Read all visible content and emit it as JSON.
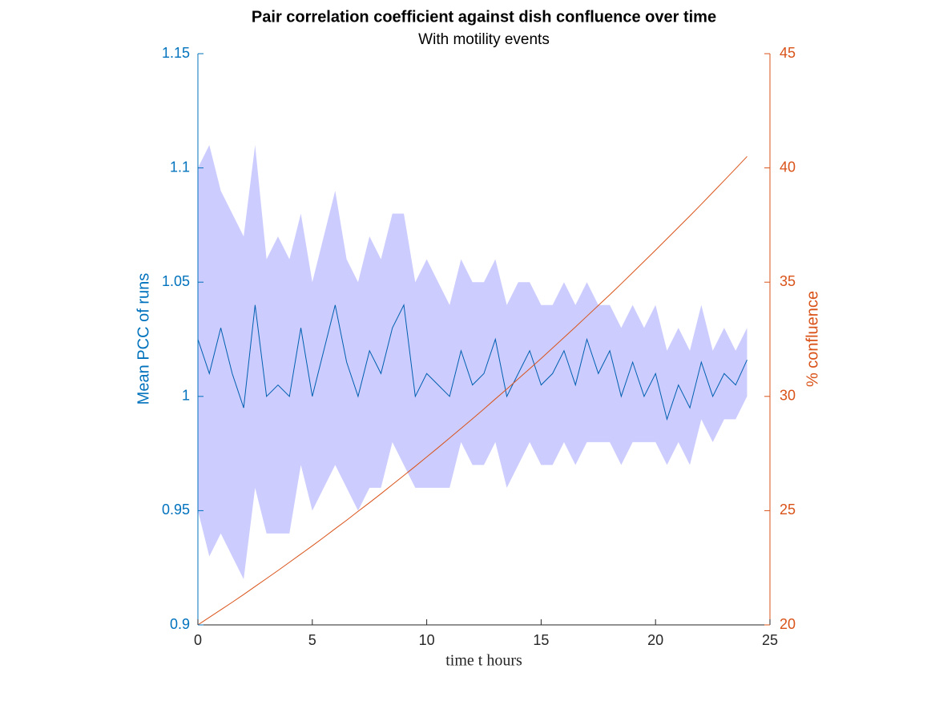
{
  "chart_data": {
    "type": "line",
    "title": "Pair correlation coefficient against dish confluence over time",
    "subtitle": "With motility events",
    "xlabel": "time t hours",
    "ylabel": "Mean PCC of runs",
    "y2label": "% confluence",
    "x": [
      0,
      0.5,
      1,
      1.5,
      2,
      2.5,
      3,
      3.5,
      4,
      4.5,
      5,
      5.5,
      6,
      6.5,
      7,
      7.5,
      8,
      8.5,
      9,
      9.5,
      10,
      10.5,
      11,
      11.5,
      12,
      12.5,
      13,
      13.5,
      14,
      14.5,
      15,
      15.5,
      16,
      16.5,
      17,
      17.5,
      18,
      18.5,
      19,
      19.5,
      20,
      20.5,
      21,
      21.5,
      22,
      22.5,
      23,
      23.5,
      24
    ],
    "band": {
      "color": "#ccccff",
      "upper": [
        1.1,
        1.11,
        1.09,
        1.08,
        1.07,
        1.11,
        1.06,
        1.07,
        1.06,
        1.08,
        1.05,
        1.07,
        1.09,
        1.06,
        1.05,
        1.07,
        1.06,
        1.08,
        1.08,
        1.05,
        1.06,
        1.05,
        1.04,
        1.06,
        1.05,
        1.05,
        1.06,
        1.04,
        1.05,
        1.05,
        1.04,
        1.04,
        1.05,
        1.04,
        1.05,
        1.04,
        1.04,
        1.03,
        1.04,
        1.03,
        1.04,
        1.02,
        1.03,
        1.02,
        1.04,
        1.02,
        1.03,
        1.02,
        1.03
      ],
      "lower": [
        0.95,
        0.93,
        0.94,
        0.93,
        0.92,
        0.96,
        0.94,
        0.94,
        0.94,
        0.97,
        0.95,
        0.96,
        0.97,
        0.96,
        0.95,
        0.96,
        0.96,
        0.98,
        0.97,
        0.96,
        0.96,
        0.96,
        0.96,
        0.98,
        0.97,
        0.97,
        0.98,
        0.96,
        0.97,
        0.98,
        0.97,
        0.97,
        0.98,
        0.97,
        0.98,
        0.98,
        0.98,
        0.97,
        0.98,
        0.98,
        0.98,
        0.97,
        0.98,
        0.97,
        0.99,
        0.98,
        0.99,
        0.99,
        1.0
      ]
    },
    "series": [
      {
        "color": "#0060b0",
        "values": [
          1.025,
          1.01,
          1.03,
          1.01,
          0.995,
          1.04,
          1.0,
          1.005,
          1.0,
          1.03,
          1.0,
          1.02,
          1.04,
          1.015,
          1.0,
          1.02,
          1.01,
          1.03,
          1.04,
          1.0,
          1.01,
          1.005,
          1.0,
          1.02,
          1.005,
          1.01,
          1.025,
          1.0,
          1.01,
          1.02,
          1.005,
          1.01,
          1.02,
          1.005,
          1.025,
          1.01,
          1.02,
          1.0,
          1.015,
          1.0,
          1.01,
          0.99,
          1.005,
          0.995,
          1.015,
          1.0,
          1.01,
          1.005,
          1.016
        ]
      },
      {
        "color": "#D95319",
        "axis": "y2",
        "values": [
          20.0,
          20.33,
          20.66,
          20.99,
          21.33,
          21.68,
          22.03,
          22.38,
          22.74,
          23.1,
          23.46,
          23.83,
          24.21,
          24.58,
          24.97,
          25.35,
          25.74,
          26.14,
          26.54,
          26.94,
          27.35,
          27.76,
          28.18,
          28.6,
          29.02,
          29.45,
          29.89,
          30.32,
          30.77,
          31.21,
          31.66,
          32.12,
          32.58,
          33.04,
          33.51,
          33.98,
          34.45,
          34.93,
          35.42,
          35.91,
          36.4,
          36.9,
          37.4,
          37.9,
          38.41,
          38.93,
          39.45,
          39.97,
          40.5
        ]
      }
    ],
    "xlim": [
      0,
      25
    ],
    "xticks": [
      0,
      5,
      10,
      15,
      20,
      25
    ],
    "ylim": [
      0.9,
      1.15
    ],
    "yticks": [
      0.9,
      0.95,
      1,
      1.05,
      1.1,
      1.15
    ],
    "ycolor": "#0072BD",
    "y2lim": [
      20,
      45
    ],
    "y2ticks": [
      20,
      25,
      30,
      35,
      40,
      45
    ],
    "y2color": "#D95319"
  }
}
